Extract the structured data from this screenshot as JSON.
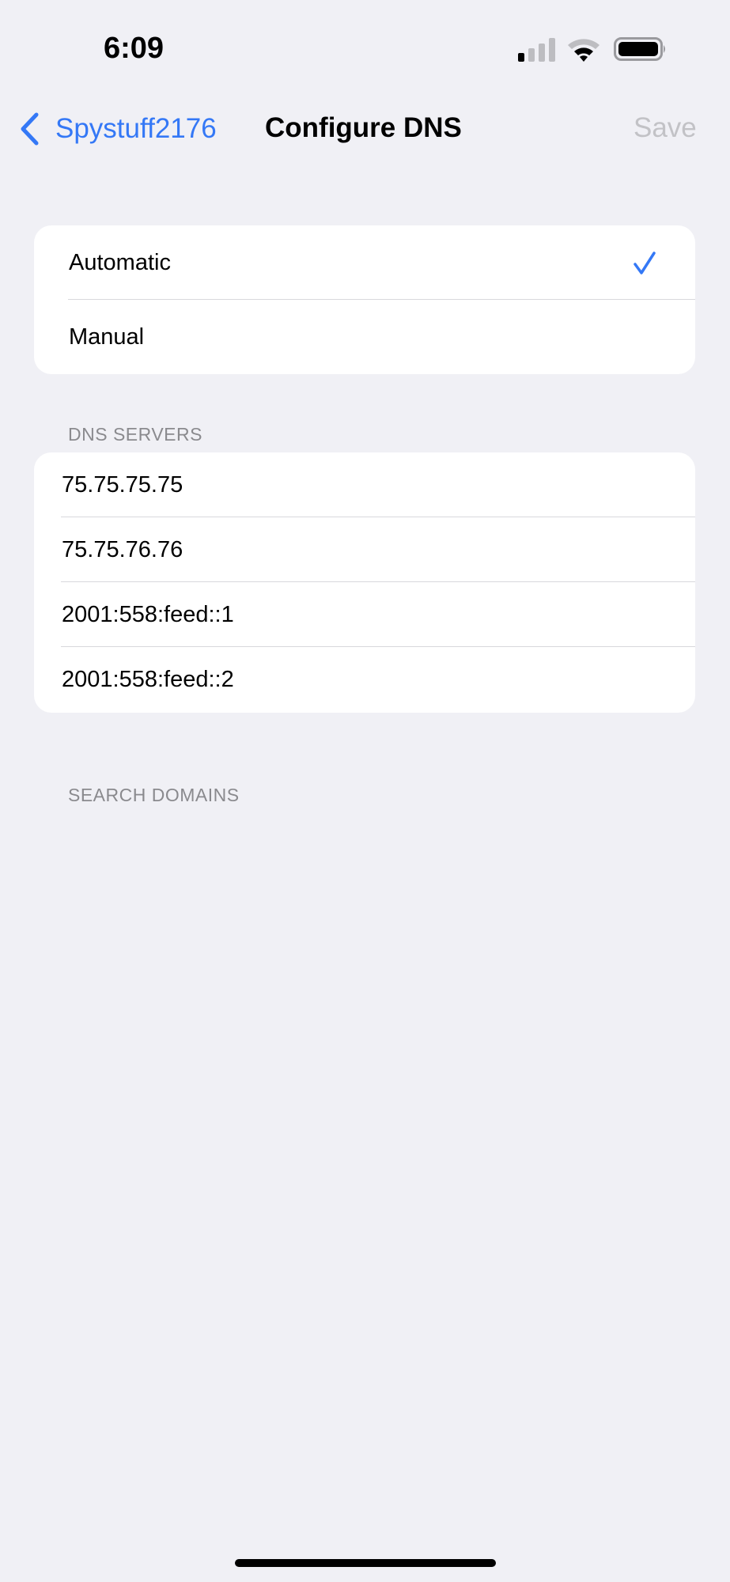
{
  "status_bar": {
    "time": "6:09",
    "icons": [
      "cellular-signal-icon",
      "wifi-icon",
      "battery-icon"
    ]
  },
  "nav": {
    "back_label": "Spystuff2176",
    "title": "Configure DNS",
    "save_label": "Save"
  },
  "mode": {
    "options": [
      {
        "label": "Automatic",
        "selected": true
      },
      {
        "label": "Manual",
        "selected": false
      }
    ]
  },
  "dns_servers": {
    "header": "DNS SERVERS",
    "items": [
      "75.75.75.75",
      "75.75.76.76",
      "2001:558:feed::1",
      "2001:558:feed::2"
    ]
  },
  "search_domains": {
    "header": "SEARCH DOMAINS"
  },
  "colors": {
    "accent": "#3478f6",
    "background": "#f0f0f5",
    "disabled": "#c2c2c6",
    "section_header": "#8a8a8e"
  }
}
